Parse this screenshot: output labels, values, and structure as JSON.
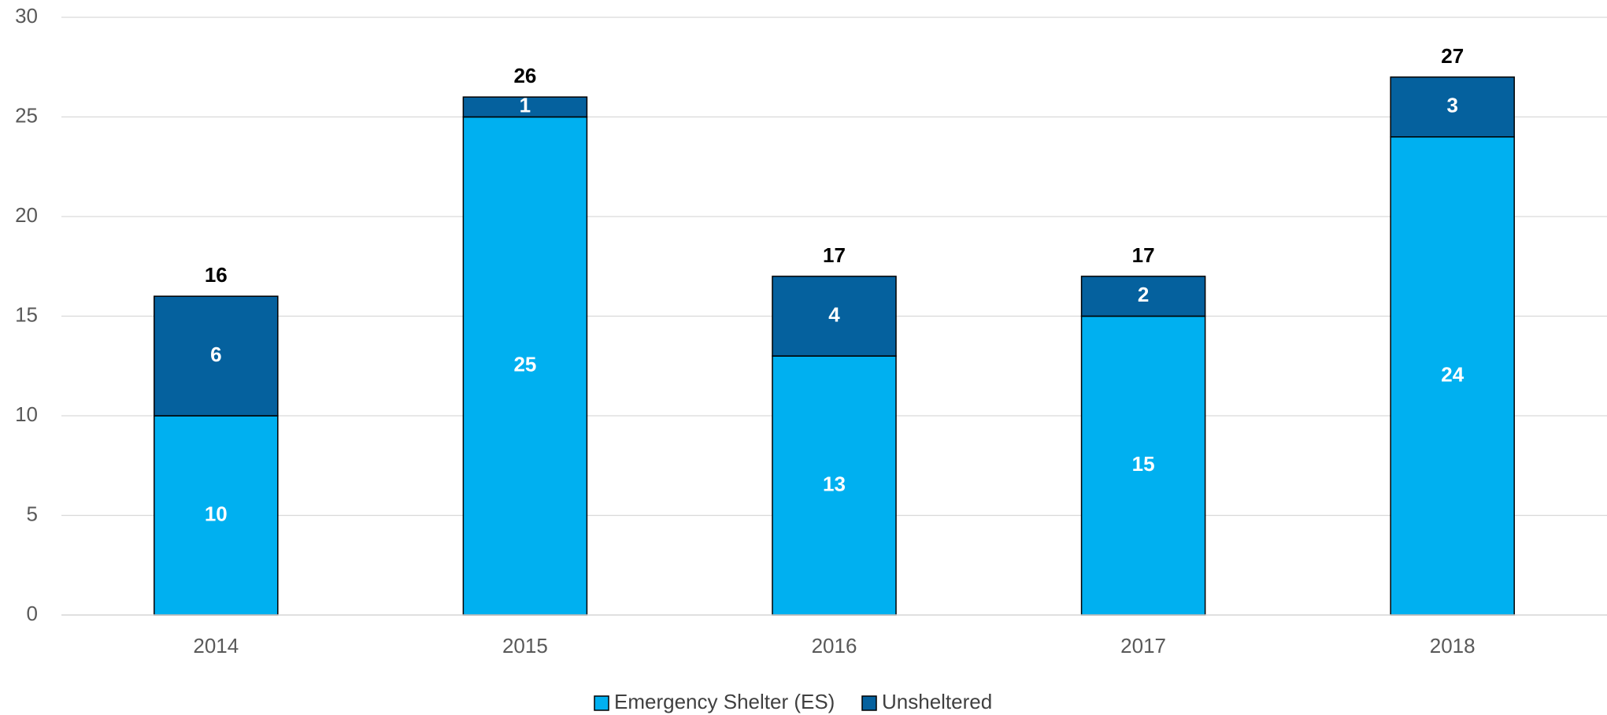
{
  "chart_data": {
    "type": "stacked_bar",
    "categories": [
      "2014",
      "2015",
      "2016",
      "2017",
      "2018"
    ],
    "series": [
      {
        "name": "Emergency Shelter (ES)",
        "color": "#00b0f0",
        "values": [
          10,
          25,
          13,
          15,
          24
        ]
      },
      {
        "name": "Unsheltered",
        "color": "#05619e",
        "values": [
          6,
          1,
          4,
          2,
          3
        ]
      }
    ],
    "totals": [
      16,
      26,
      17,
      17,
      27
    ],
    "ylim": [
      0,
      30
    ],
    "yticks": [
      0,
      5,
      10,
      15,
      20,
      25,
      30
    ],
    "grid": true,
    "legend": "bottom"
  }
}
